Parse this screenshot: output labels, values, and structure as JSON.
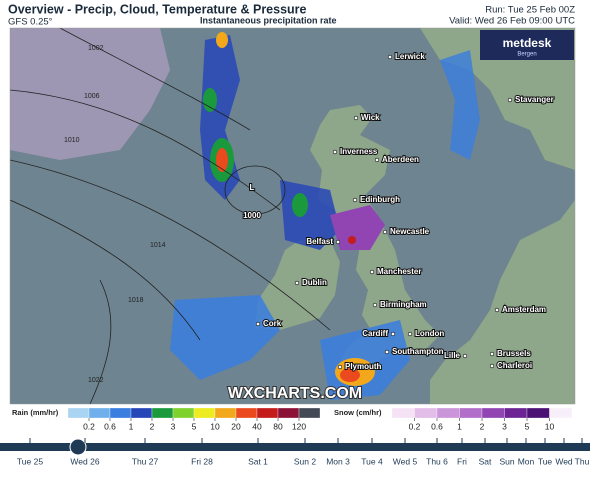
{
  "header": {
    "title": "Overview - Precip, Cloud, Temperature & Pressure",
    "model": "GFS 0.25°",
    "subtitle": "Instantaneous precipitation rate",
    "run": "Run: Tue 25 Feb 00Z",
    "valid": "Valid: Wed 26 Feb 09:00 UTC",
    "logo": "metdesk",
    "logo_sub": "Bergen"
  },
  "map": {
    "cities": [
      "Lerwick",
      "Stavanger",
      "Wick",
      "Inverness",
      "Aberdeen",
      "Edinburgh",
      "Newcastle",
      "Belfast",
      "Dublin",
      "Manchester",
      "Birmingham",
      "Amsterdam",
      "Cork",
      "Cardiff",
      "London",
      "Southampton",
      "Lille",
      "Brussels",
      "Charleroi",
      "Plymouth"
    ],
    "isobars": [
      "1002",
      "1006",
      "1010",
      "1014",
      "1018",
      "1022"
    ],
    "low": "L",
    "low_pressure": "1000",
    "watermark": "WXCHARTS.COM"
  },
  "legend": {
    "rain": {
      "title": "Rain (mm/hr)",
      "ticks": [
        0.2,
        0.6,
        1,
        2,
        3,
        5,
        10,
        20,
        40,
        80,
        120
      ],
      "colors": [
        "#a9d4f2",
        "#6fb0ec",
        "#3a7ee0",
        "#2747b8",
        "#1a9a3c",
        "#7fd12c",
        "#ecec20",
        "#f3a81b",
        "#ea4a1d",
        "#c41b1b",
        "#8c1136",
        "#444a55"
      ]
    },
    "snow": {
      "title": "Snow (cm/hr)",
      "ticks": [
        0.2,
        0.6,
        1,
        2,
        3,
        5,
        10
      ],
      "colors": [
        "#f5e3f5",
        "#e2bde8",
        "#cb95da",
        "#b26fca",
        "#9145b3",
        "#6c2393",
        "#4c1174",
        "#f7f0fa"
      ]
    }
  },
  "timeline": {
    "days": [
      "Tue 25",
      "Wed 26",
      "Thu 27",
      "Fri 28",
      "Sat 1",
      "Sun 2",
      "Mon 3",
      "Tue 4",
      "Wed 5",
      "Thu 6",
      "Fri",
      "Sat",
      "Sun",
      "Mon",
      "Tue",
      "Wed",
      "Thu"
    ]
  }
}
